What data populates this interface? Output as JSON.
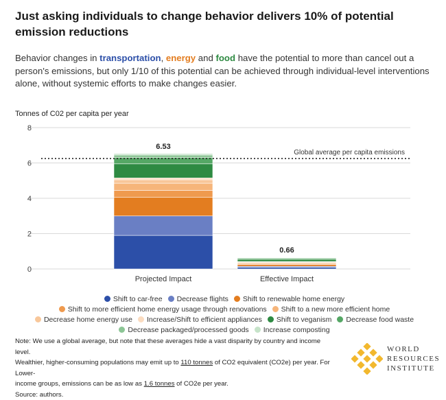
{
  "title": "Just asking individuals to change behavior delivers 10% of potential emission reductions",
  "subtitle": {
    "p1": "Behavior changes in ",
    "h1": "transportation",
    "p2": ", ",
    "h2": "energy",
    "p3": " and ",
    "h3": "food",
    "p4": " have the potential to more than cancel out a person's emissions, but only 1/10 of this potential can be achieved through individual-level interventions alone, without systemic efforts to make changes easier."
  },
  "chart_data": {
    "type": "bar",
    "stacked": true,
    "ylabel": "Tonnes of C02 per capita per year",
    "ylim": [
      0,
      8
    ],
    "yticks": [
      "0",
      "2",
      "4",
      "6",
      "8"
    ],
    "grid": true,
    "categories": [
      "Projected Impact",
      "Effective Impact"
    ],
    "totals": [
      "6.53",
      "0.66"
    ],
    "reference_line": {
      "value": 6.25,
      "label": "Global average per capita emissions"
    },
    "series": [
      {
        "name": "Shift to car-free",
        "color": "#2c4fa8",
        "values": [
          1.9,
          0.1
        ]
      },
      {
        "name": "Decrease flights",
        "color": "#6a7fc4",
        "values": [
          1.1,
          0.05
        ]
      },
      {
        "name": "Shift to renewable home energy",
        "color": "#e37d20",
        "values": [
          1.05,
          0.1
        ]
      },
      {
        "name": "Shift to more efficient home energy usage through renovations",
        "color": "#ef9a4e",
        "values": [
          0.4,
          0.05
        ]
      },
      {
        "name": "Shift to a new more efficient home",
        "color": "#f6b57a",
        "values": [
          0.4,
          0.05
        ]
      },
      {
        "name": "Decrease home energy use",
        "color": "#f8c79a",
        "values": [
          0.2,
          0.04
        ]
      },
      {
        "name": "Increase/Shift to efficient appliances",
        "color": "#fbdcc0",
        "values": [
          0.1,
          0.03
        ]
      },
      {
        "name": "Shift to veganism",
        "color": "#2e8a42",
        "values": [
          0.8,
          0.12
        ]
      },
      {
        "name": "Decrease food waste",
        "color": "#55a765",
        "values": [
          0.35,
          0.06
        ]
      },
      {
        "name": "Decrease packaged/processed goods",
        "color": "#8cc595",
        "values": [
          0.15,
          0.04
        ]
      },
      {
        "name": "Increase composting",
        "color": "#c6e3c9",
        "values": [
          0.08,
          0.02
        ]
      }
    ]
  },
  "note": {
    "l1": "Note: We use a global average, but note that these averages hide a vast disparity by country and income level.",
    "l2a": "Wealthier, higher-consuming populations may emit up to ",
    "l2u": "110 tonnes",
    "l2b": " of CO2 equivalent (CO2e) per year. For Lower-",
    "l3a": "income groups, emissions can be as low as ",
    "l3u": "1.6 tonnes",
    "l3b": " of CO2e per year.",
    "l4": "Source: authors."
  },
  "logo": {
    "line1": "WORLD",
    "line2": "RESOURCES",
    "line3": "INSTITUTE",
    "color": "#f2b82e"
  }
}
